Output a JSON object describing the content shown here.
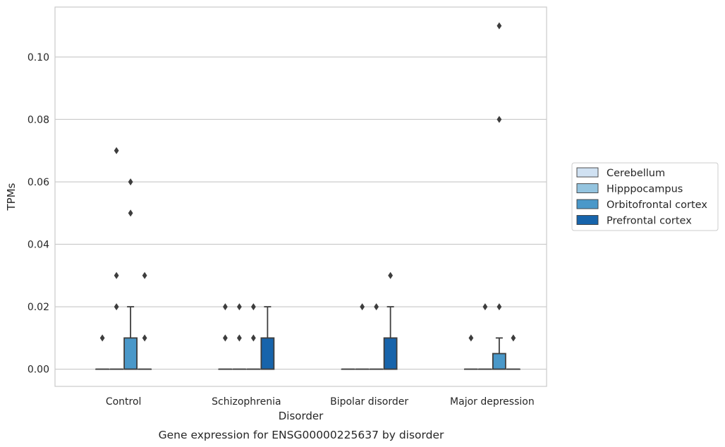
{
  "chart_data": {
    "type": "box",
    "caption": "Gene expression for ENSG00000225637 by disorder",
    "xlabel": "Disorder",
    "ylabel": "TPMs",
    "ylim": [
      -0.0055,
      0.116
    ],
    "yticks": [
      "0.00",
      "0.02",
      "0.04",
      "0.06",
      "0.08",
      "0.10"
    ],
    "grid": true,
    "legend_position": "right",
    "categories": [
      "Control",
      "Schizophrenia",
      "Bipolar disorder",
      "Major depression"
    ],
    "series": [
      {
        "name": "Cerebellum",
        "color": "#d0e1f2",
        "boxes": [
          {
            "q1": 0,
            "median": 0,
            "q3": 0,
            "whisker_low": 0,
            "whisker_high": 0,
            "outliers": [
              0.01
            ]
          },
          {
            "q1": 0,
            "median": 0,
            "q3": 0,
            "whisker_low": 0,
            "whisker_high": 0,
            "outliers": [
              0.01,
              0.02
            ]
          },
          {
            "q1": 0,
            "median": 0,
            "q3": 0,
            "whisker_low": 0,
            "whisker_high": 0,
            "outliers": []
          },
          {
            "q1": 0,
            "median": 0,
            "q3": 0,
            "whisker_low": 0,
            "whisker_high": 0,
            "outliers": [
              0.01
            ]
          }
        ]
      },
      {
        "name": "Hipppocampus",
        "color": "#94c4df",
        "boxes": [
          {
            "q1": 0,
            "median": 0,
            "q3": 0,
            "whisker_low": 0,
            "whisker_high": 0,
            "outliers": [
              0.02,
              0.03,
              0.07
            ]
          },
          {
            "q1": 0,
            "median": 0,
            "q3": 0,
            "whisker_low": 0,
            "whisker_high": 0,
            "outliers": [
              0.01,
              0.02
            ]
          },
          {
            "q1": 0,
            "median": 0,
            "q3": 0,
            "whisker_low": 0,
            "whisker_high": 0,
            "outliers": [
              0.02
            ]
          },
          {
            "q1": 0,
            "median": 0,
            "q3": 0,
            "whisker_low": 0,
            "whisker_high": 0,
            "outliers": [
              0.02
            ]
          }
        ]
      },
      {
        "name": "Orbitofrontal cortex",
        "color": "#4a98c9",
        "boxes": [
          {
            "q1": 0,
            "median": 0,
            "q3": 0.01,
            "whisker_low": 0,
            "whisker_high": 0.02,
            "outliers": [
              0.05,
              0.06
            ]
          },
          {
            "q1": 0,
            "median": 0,
            "q3": 0,
            "whisker_low": 0,
            "whisker_high": 0,
            "outliers": [
              0.01,
              0.02
            ]
          },
          {
            "q1": 0,
            "median": 0,
            "q3": 0,
            "whisker_low": 0,
            "whisker_high": 0,
            "outliers": [
              0.02
            ]
          },
          {
            "q1": 0,
            "median": 0,
            "q3": 0.005,
            "whisker_low": 0,
            "whisker_high": 0.01,
            "outliers": [
              0.02,
              0.08,
              0.11
            ]
          }
        ]
      },
      {
        "name": "Prefrontal cortex",
        "color": "#1764ab",
        "boxes": [
          {
            "q1": 0,
            "median": 0,
            "q3": 0,
            "whisker_low": 0,
            "whisker_high": 0,
            "outliers": [
              0.01,
              0.03
            ]
          },
          {
            "q1": 0,
            "median": 0,
            "q3": 0.01,
            "whisker_low": 0,
            "whisker_high": 0.02,
            "outliers": []
          },
          {
            "q1": 0,
            "median": 0,
            "q3": 0.01,
            "whisker_low": 0,
            "whisker_high": 0.02,
            "outliers": [
              0.03
            ]
          },
          {
            "q1": 0,
            "median": 0,
            "q3": 0,
            "whisker_low": 0,
            "whisker_high": 0,
            "outliers": [
              0.01
            ]
          }
        ]
      }
    ]
  }
}
